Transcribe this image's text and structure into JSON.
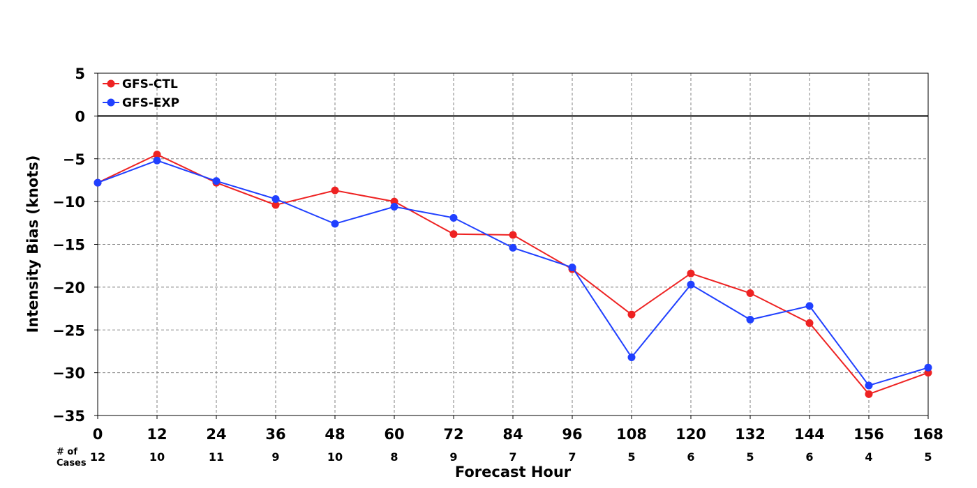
{
  "chart_data": {
    "type": "line",
    "xlabel": "Forecast Hour",
    "ylabel": "Intensity Bias (knots)",
    "x": [
      0,
      12,
      24,
      36,
      48,
      60,
      72,
      84,
      96,
      108,
      120,
      132,
      144,
      156,
      168
    ],
    "xlim": [
      0,
      168
    ],
    "ylim": [
      -35,
      5
    ],
    "yticks": [
      5,
      0,
      -5,
      -10,
      -15,
      -20,
      -25,
      -30,
      -35
    ],
    "ytick_labels": [
      "5",
      "0",
      "−5",
      "−10",
      "−15",
      "−20",
      "−25",
      "−30",
      "−35"
    ],
    "grid": true,
    "legend_position": "top-left",
    "series": [
      {
        "name": "GFS-CTL",
        "color": "#ee2222",
        "values": [
          -7.8,
          -4.5,
          -7.8,
          -10.4,
          -8.7,
          -10.0,
          -13.8,
          -13.9,
          -17.9,
          -23.2,
          -18.4,
          -20.7,
          -24.2,
          -32.5,
          -30.0
        ]
      },
      {
        "name": "GFS-EXP",
        "color": "#2040ff",
        "values": [
          -7.8,
          -5.2,
          -7.6,
          -9.7,
          -12.6,
          -10.6,
          -11.9,
          -15.4,
          -17.7,
          -28.2,
          -19.7,
          -23.8,
          -22.2,
          -31.5,
          -29.4
        ]
      }
    ],
    "cases": {
      "label_line1": "# of",
      "label_line2": "Cases",
      "values": [
        "12",
        "10",
        "11",
        "9",
        "10",
        "8",
        "9",
        "7",
        "7",
        "5",
        "6",
        "5",
        "6",
        "4",
        "5"
      ]
    }
  }
}
